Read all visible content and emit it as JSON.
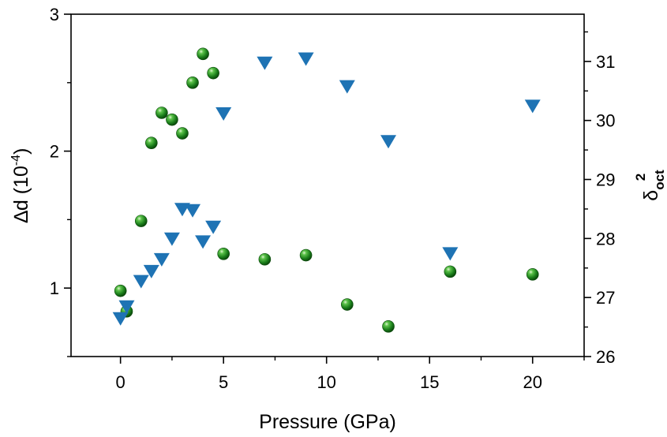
{
  "chart_data": {
    "type": "scatter",
    "title": "",
    "xlabel": "Pressure (GPa)",
    "ylabel_left": {
      "base": "∆d (10",
      "sup": "-4",
      "close": ")"
    },
    "ylabel_right": {
      "base": "δ",
      "sub": "oct",
      "sup": "2"
    },
    "xlim": [
      -2.4,
      22.5
    ],
    "ylim_left": [
      0.5,
      3.0
    ],
    "ylim_right": [
      26.0,
      31.8
    ],
    "x_ticks": [
      0,
      5,
      10,
      15,
      20
    ],
    "y_left_ticks": [
      1,
      2,
      3
    ],
    "y_right_ticks": [
      26,
      27,
      28,
      29,
      30,
      31
    ],
    "grid": false,
    "legend": "none",
    "series": [
      {
        "axis": "left",
        "marker": "sphere",
        "color": "#1f8a1f",
        "x": [
          0,
          0.3,
          1.0,
          1.5,
          2.0,
          2.5,
          3.0,
          3.5,
          4.0,
          4.5,
          5.0,
          7.0,
          9.0,
          11.0,
          13.0,
          16.0,
          20.0
        ],
        "y": [
          0.98,
          0.83,
          1.49,
          2.06,
          2.28,
          2.23,
          2.13,
          2.5,
          2.71,
          2.57,
          1.25,
          1.21,
          1.24,
          0.88,
          0.72,
          1.12,
          1.1
        ]
      },
      {
        "axis": "right",
        "marker": "triangle-down",
        "color": "#1e73b4",
        "x": [
          0,
          0.3,
          1.0,
          1.5,
          2.0,
          2.5,
          3.0,
          3.5,
          4.0,
          4.5,
          5.0,
          7.0,
          9.0,
          11.0,
          13.0,
          16.0,
          20.0
        ],
        "y": [
          26.65,
          26.85,
          27.28,
          27.45,
          27.65,
          28.0,
          28.5,
          28.48,
          27.95,
          28.2,
          30.12,
          30.98,
          31.05,
          30.58,
          29.65,
          27.75,
          30.25
        ]
      }
    ]
  }
}
